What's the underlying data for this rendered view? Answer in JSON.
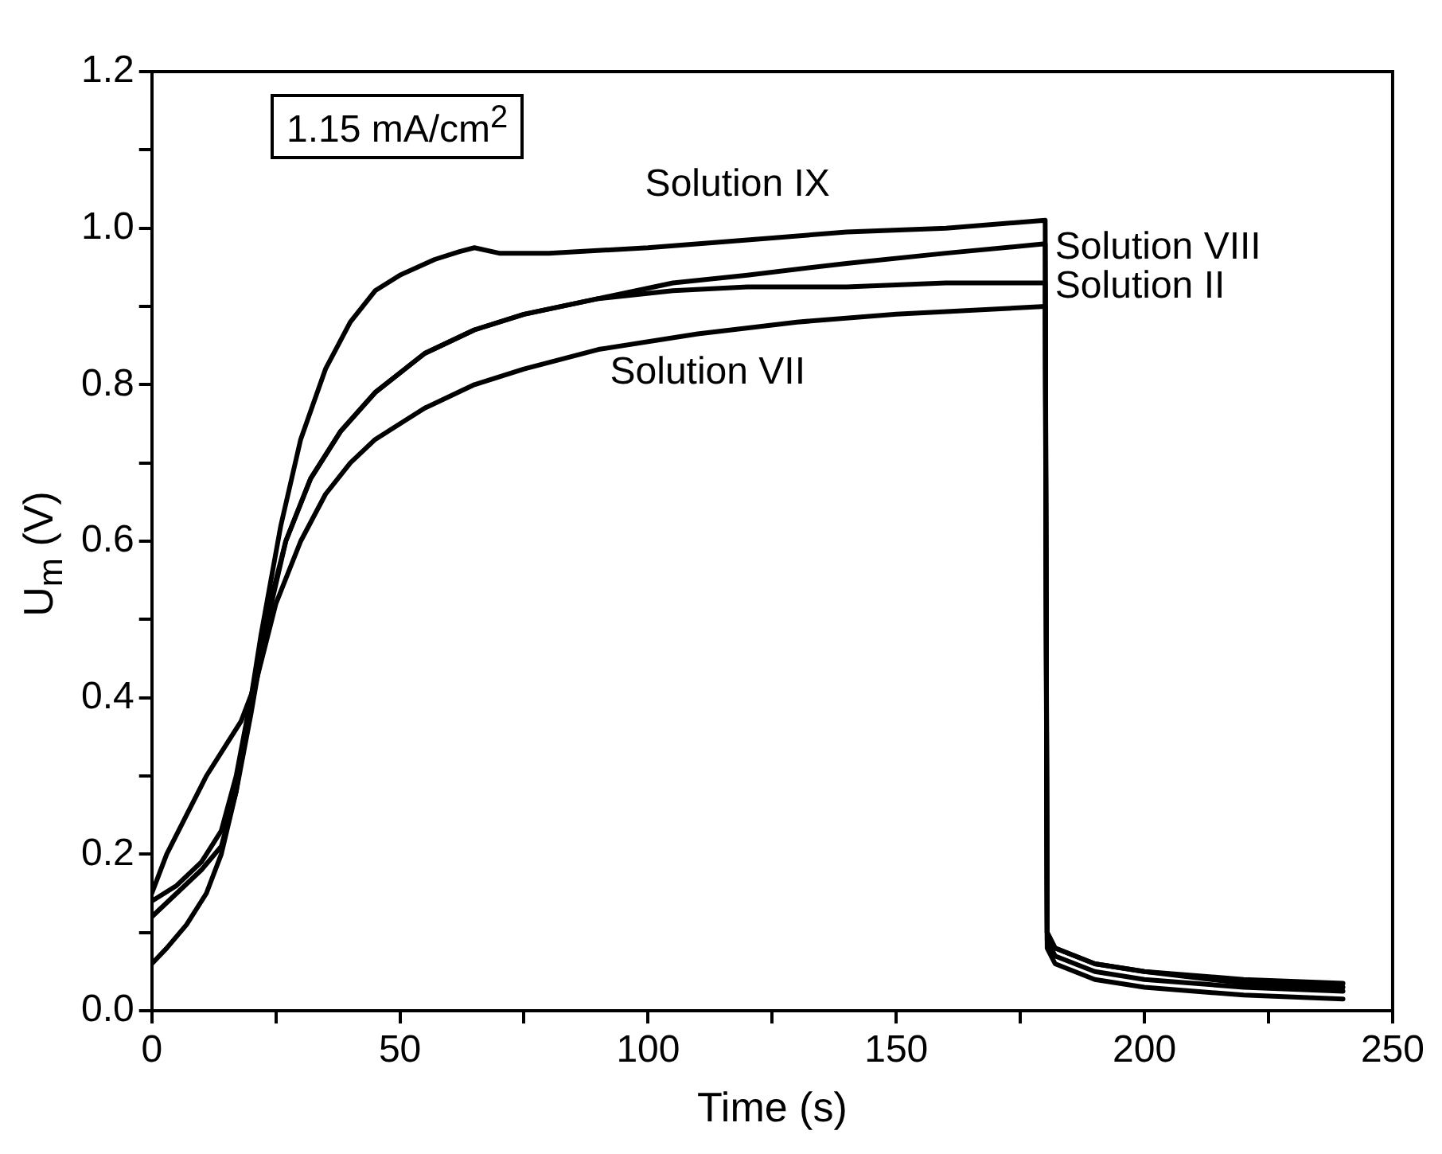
{
  "chart_data": {
    "type": "line",
    "xlabel": "Time (s)",
    "ylabel": "U$_{m}$ (V)",
    "annotations": [
      "1.15 mA/cm$^{2}$"
    ],
    "xlim": [
      0,
      250
    ],
    "xticks": [
      0,
      {
        "value": 25,
        "label": null
      },
      50,
      {
        "value": 75,
        "label": null
      },
      100,
      {
        "value": 125,
        "label": null
      },
      150,
      {
        "value": 175,
        "label": null
      },
      200,
      {
        "value": 225,
        "label": null
      },
      250
    ],
    "ylim": [
      0,
      1.2
    ],
    "yticks": [
      {
        "value": 0,
        "label": "0.0"
      },
      {
        "value": 0.1,
        "label": null
      },
      {
        "value": 0.2,
        "label": "0.2"
      },
      {
        "value": 0.3,
        "label": null
      },
      {
        "value": 0.4,
        "label": "0.4"
      },
      {
        "value": 0.5,
        "label": null
      },
      {
        "value": 0.6,
        "label": "0.6"
      },
      {
        "value": 0.7,
        "label": null
      },
      {
        "value": 0.8,
        "label": "0.8"
      },
      {
        "value": 0.9,
        "label": null
      },
      {
        "value": 1.0,
        "label": "1.0"
      },
      {
        "value": 1.1,
        "label": null
      },
      {
        "value": 1.2,
        "label": "1.2"
      }
    ],
    "grid": false,
    "legend": false,
    "marker": "none",
    "line_style": "solid",
    "series": [
      {
        "name": "Solution IX",
        "color": "#000000",
        "x": [
          0,
          3,
          7,
          11,
          14,
          17,
          19,
          22,
          26,
          30,
          35,
          40,
          45,
          50,
          57,
          62,
          65,
          70,
          80,
          100,
          120,
          140,
          160,
          180,
          180.4,
          182,
          190,
          200,
          220,
          240
        ],
        "values": [
          0.06,
          0.08,
          0.11,
          0.15,
          0.2,
          0.28,
          0.36,
          0.48,
          0.62,
          0.73,
          0.82,
          0.88,
          0.92,
          0.94,
          0.96,
          0.97,
          0.975,
          0.968,
          0.968,
          0.975,
          0.985,
          0.995,
          1.0,
          1.01,
          0.1,
          0.08,
          0.06,
          0.05,
          0.04,
          0.035
        ]
      },
      {
        "name": "Solution VIII",
        "color": "#000000",
        "x": [
          0,
          5,
          10,
          14,
          17,
          20,
          23,
          27,
          32,
          38,
          45,
          55,
          65,
          75,
          90,
          105,
          120,
          140,
          160,
          180,
          180.4,
          182,
          190,
          200,
          220,
          240
        ],
        "values": [
          0.14,
          0.16,
          0.19,
          0.23,
          0.3,
          0.4,
          0.5,
          0.6,
          0.68,
          0.74,
          0.79,
          0.84,
          0.87,
          0.89,
          0.91,
          0.93,
          0.94,
          0.955,
          0.968,
          0.98,
          0.1,
          0.08,
          0.06,
          0.05,
          0.035,
          0.03
        ]
      },
      {
        "name": "Solution II",
        "color": "#000000",
        "x": [
          0,
          5,
          10,
          14,
          17,
          20,
          23,
          27,
          32,
          38,
          45,
          55,
          65,
          75,
          90,
          105,
          120,
          140,
          160,
          180,
          180.4,
          182,
          190,
          200,
          220,
          240
        ],
        "values": [
          0.12,
          0.15,
          0.18,
          0.21,
          0.28,
          0.38,
          0.49,
          0.6,
          0.68,
          0.74,
          0.79,
          0.84,
          0.87,
          0.89,
          0.91,
          0.92,
          0.925,
          0.925,
          0.93,
          0.93,
          0.09,
          0.07,
          0.05,
          0.04,
          0.03,
          0.025
        ]
      },
      {
        "name": "Solution VII",
        "color": "#000000",
        "x": [
          0,
          3,
          7,
          11,
          15,
          18,
          21,
          25,
          30,
          35,
          40,
          45,
          55,
          65,
          75,
          90,
          110,
          130,
          150,
          180,
          180.4,
          182,
          190,
          200,
          220,
          240
        ],
        "values": [
          0.15,
          0.2,
          0.25,
          0.3,
          0.34,
          0.37,
          0.42,
          0.52,
          0.6,
          0.66,
          0.7,
          0.73,
          0.77,
          0.8,
          0.82,
          0.845,
          0.865,
          0.88,
          0.89,
          0.9,
          0.08,
          0.06,
          0.04,
          0.03,
          0.02,
          0.015
        ]
      }
    ]
  }
}
